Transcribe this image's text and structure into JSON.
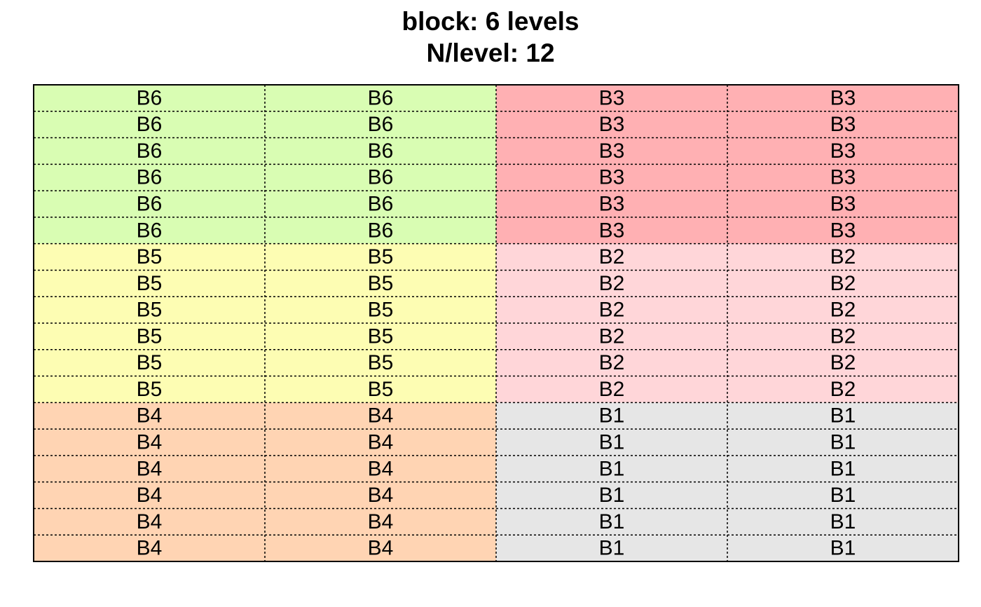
{
  "chart_data": {
    "type": "heatmap",
    "title_lines": [
      "block: 6 levels",
      "N/level: 12"
    ],
    "n_rows": 18,
    "n_cols": 4,
    "levels": [
      {
        "name": "B1",
        "color": "#e6e6e6"
      },
      {
        "name": "B2",
        "color": "#ffd6d9"
      },
      {
        "name": "B3",
        "color": "#ffb0b3"
      },
      {
        "name": "B4",
        "color": "#ffd4b3"
      },
      {
        "name": "B5",
        "color": "#fdfdb3"
      },
      {
        "name": "B6",
        "color": "#d9fdb3"
      }
    ],
    "cells": [
      [
        "B6",
        "B6",
        "B3",
        "B3"
      ],
      [
        "B6",
        "B6",
        "B3",
        "B3"
      ],
      [
        "B6",
        "B6",
        "B3",
        "B3"
      ],
      [
        "B6",
        "B6",
        "B3",
        "B3"
      ],
      [
        "B6",
        "B6",
        "B3",
        "B3"
      ],
      [
        "B6",
        "B6",
        "B3",
        "B3"
      ],
      [
        "B5",
        "B5",
        "B2",
        "B2"
      ],
      [
        "B5",
        "B5",
        "B2",
        "B2"
      ],
      [
        "B5",
        "B5",
        "B2",
        "B2"
      ],
      [
        "B5",
        "B5",
        "B2",
        "B2"
      ],
      [
        "B5",
        "B5",
        "B2",
        "B2"
      ],
      [
        "B5",
        "B5",
        "B2",
        "B2"
      ],
      [
        "B4",
        "B4",
        "B1",
        "B1"
      ],
      [
        "B4",
        "B4",
        "B1",
        "B1"
      ],
      [
        "B4",
        "B4",
        "B1",
        "B1"
      ],
      [
        "B4",
        "B4",
        "B1",
        "B1"
      ],
      [
        "B4",
        "B4",
        "B1",
        "B1"
      ],
      [
        "B4",
        "B4",
        "B1",
        "B1"
      ]
    ],
    "grid": "dotted",
    "legend": "none"
  }
}
